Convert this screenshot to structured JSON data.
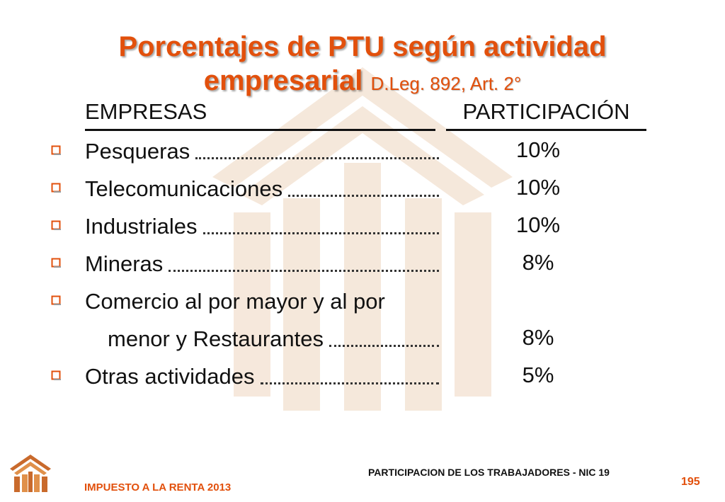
{
  "title": {
    "line1": "Porcentajes de PTU según actividad",
    "line2_main": "empresarial",
    "line2_sub": "D.Leg. 892, Art. 2°"
  },
  "table": {
    "header_col1": "EMPRESAS",
    "header_col2": "PARTICIPACIÓN",
    "rows": [
      {
        "label": "Pesqueras",
        "value": "10%"
      },
      {
        "label": "Telecomunicaciones",
        "value": "10%"
      },
      {
        "label": "Industriales",
        "value": "10%"
      },
      {
        "label": "Mineras",
        "value": "8%"
      },
      {
        "label": "Comercio al por mayor y al por",
        "value": ""
      },
      {
        "label": "menor y Restaurantes",
        "value": "8%"
      },
      {
        "label": "Otras actividades",
        "value": "5%"
      }
    ]
  },
  "footer": {
    "left": "IMPUESTO A LA RENTA 2013",
    "center": "PARTICIPACION DE LOS TRABAJADORES - NIC 19",
    "page_number": "195"
  },
  "colors": {
    "accent": "#e2500c",
    "text": "#111111",
    "watermark": "#f3e2d2"
  },
  "icons": [
    "hollow-square-bullet-icon",
    "building-logo-icon"
  ]
}
